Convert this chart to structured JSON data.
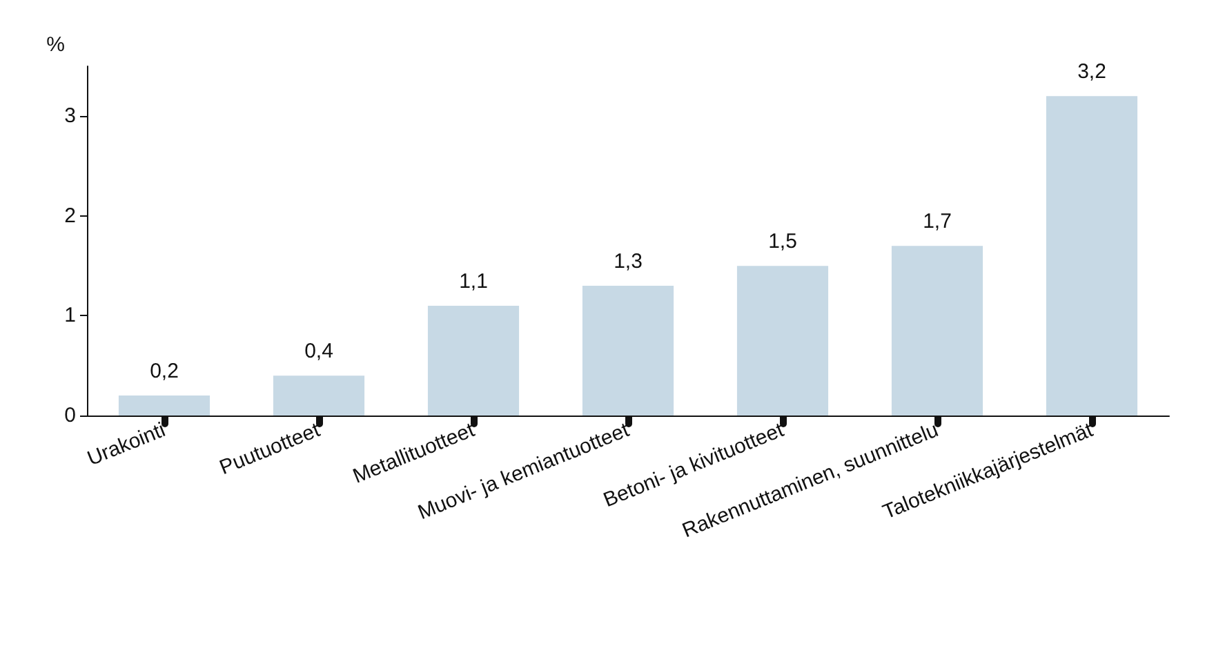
{
  "chart_data": {
    "type": "bar",
    "ylabel": "%",
    "categories": [
      "Urakointi",
      "Puutuotteet",
      "Metallituotteet",
      "Muovi- ja kemiantuotteet",
      "Betoni- ja kivituotteet",
      "Rakennuttaminen, suunnittelu",
      "Talotekniikkajärjestelmät"
    ],
    "values": [
      0.2,
      0.4,
      1.1,
      1.3,
      1.5,
      1.7,
      3.2
    ],
    "value_labels": [
      "0,2",
      "0,4",
      "1,1",
      "1,3",
      "1,5",
      "1,7",
      "3,2"
    ],
    "color": "#c7d9e5",
    "ylim": [
      0,
      3.5
    ],
    "yticks": [
      0,
      1,
      2,
      3
    ],
    "grid": false
  }
}
